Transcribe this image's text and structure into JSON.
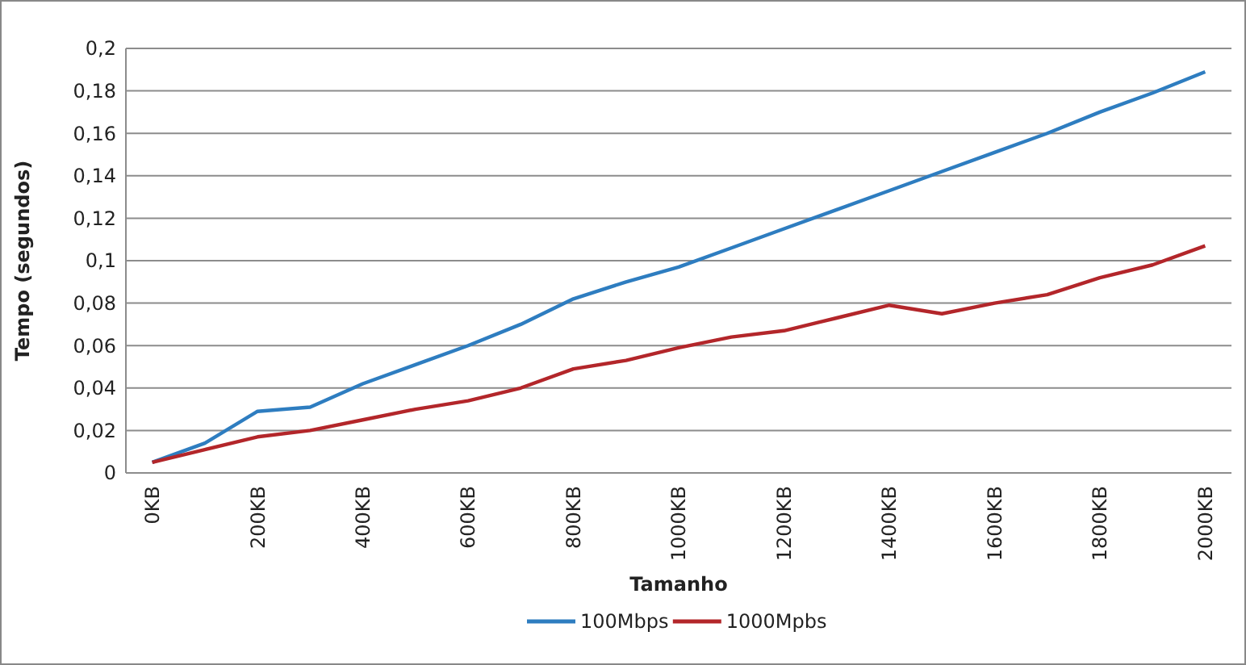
{
  "chart_data": {
    "type": "line",
    "xlabel": "Tamanho",
    "ylabel": "Tempo (segundos)",
    "categories": [
      "0KB",
      null,
      "200KB",
      null,
      "400KB",
      null,
      "600KB",
      null,
      "800KB",
      null,
      "1000KB",
      null,
      "1200KB",
      null,
      "1400KB",
      null,
      "1600KB",
      null,
      "1800KB",
      null,
      "2000KB"
    ],
    "series": [
      {
        "name": "100Mbps",
        "color": "#2e7dc0",
        "values": [
          0.005,
          0.014,
          0.029,
          0.031,
          0.042,
          0.051,
          0.06,
          0.07,
          0.082,
          0.09,
          0.097,
          0.106,
          0.115,
          0.124,
          0.133,
          0.142,
          0.151,
          0.16,
          0.17,
          0.179,
          0.189
        ]
      },
      {
        "name": "1000Mpbs",
        "color": "#b3262a",
        "values": [
          0.005,
          0.011,
          0.017,
          0.02,
          0.025,
          0.03,
          0.034,
          0.04,
          0.049,
          0.053,
          0.059,
          0.064,
          0.067,
          0.073,
          0.079,
          0.075,
          0.08,
          0.084,
          0.092,
          0.098,
          0.107
        ]
      }
    ],
    "ylim": [
      0,
      0.2
    ],
    "yticks": [
      0,
      {
        "value": 0.02,
        "label": "0,02"
      },
      {
        "value": 0.04,
        "label": "0,04"
      },
      {
        "value": 0.06,
        "label": "0,06"
      },
      {
        "value": 0.08,
        "label": "0,08"
      },
      {
        "value": 0.1,
        "label": "0,1"
      },
      {
        "value": 0.12,
        "label": "0,12"
      },
      {
        "value": 0.14,
        "label": "0,14"
      },
      {
        "value": 0.16,
        "label": "0,16"
      },
      {
        "value": 0.18,
        "label": "0,18"
      },
      {
        "value": 0.2,
        "label": "0,2"
      }
    ],
    "grid": "y",
    "legend": "bottom",
    "marker": "none",
    "line_style": "solid"
  }
}
